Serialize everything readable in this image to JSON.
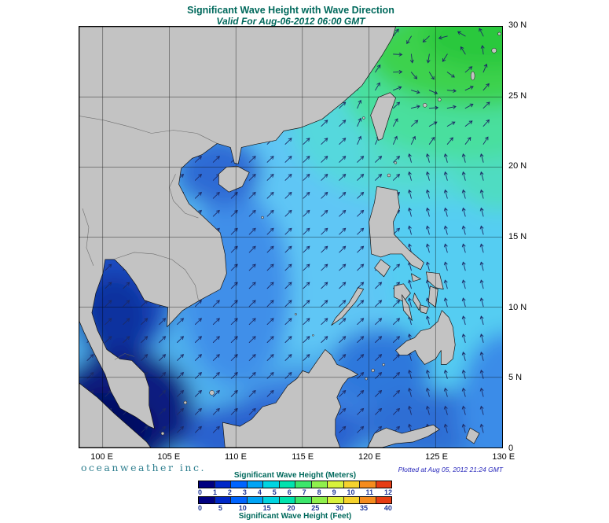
{
  "title": "Significant Wave Height with Wave Direction",
  "subtitle": "Valid For Aug-06-2012 06:00 GMT",
  "map": {
    "lon_labels": [
      "100 E",
      "105 E",
      "110 E",
      "115 E",
      "120 E",
      "125 E",
      "130 E"
    ],
    "lat_labels": [
      "30 N",
      "25 N",
      "20 N",
      "15 N",
      "10 N",
      "5 N",
      "0"
    ]
  },
  "credits": {
    "brand": "oceanweather inc.",
    "plotted": "Plotted at Aug 05, 2012 21:24 GMT"
  },
  "legend": {
    "meters_label": "Significant Wave Height (Meters)",
    "feet_label": "Significant Wave Height (Feet)",
    "meters_ticks": [
      "0",
      "1",
      "2",
      "3",
      "4",
      "5",
      "6",
      "7",
      "8",
      "9",
      "10",
      "11",
      "12"
    ],
    "feet_ticks": [
      "0",
      "5",
      "10",
      "15",
      "20",
      "25",
      "30",
      "35",
      "40"
    ],
    "colors": [
      "#000080",
      "#0028c8",
      "#0064ff",
      "#00a4f5",
      "#00d4e1",
      "#00e3ae",
      "#3ce66b",
      "#8ff04c",
      "#d8f23c",
      "#f5d22d",
      "#f58c1e",
      "#e63c14"
    ]
  },
  "wave_field": {
    "arrow_color": "#1c2a66"
  }
}
